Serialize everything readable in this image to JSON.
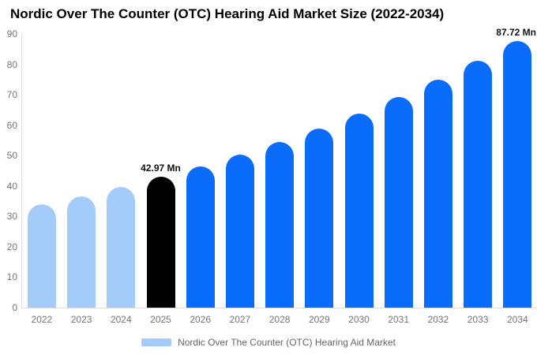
{
  "chart_data": {
    "type": "bar",
    "title": "Nordic Over The Counter (OTC) Hearing Aid Market Size (2022-2034)",
    "categories": [
      "2022",
      "2023",
      "2024",
      "2025",
      "2026",
      "2027",
      "2028",
      "2029",
      "2030",
      "2031",
      "2032",
      "2033",
      "2034"
    ],
    "values": [
      33.9,
      36.7,
      39.7,
      42.97,
      46.5,
      50.4,
      54.5,
      59.0,
      63.9,
      69.2,
      74.9,
      81.1,
      87.72
    ],
    "unit": "Mn",
    "xlabel": "",
    "ylabel": "",
    "ylim": [
      0,
      90
    ],
    "yticks": [
      0,
      10,
      20,
      30,
      40,
      50,
      60,
      70,
      80,
      90
    ],
    "grid": false,
    "bar_color_keys": [
      "historical",
      "historical",
      "historical",
      "base_year",
      "forecast",
      "forecast",
      "forecast",
      "forecast",
      "forecast",
      "forecast",
      "forecast",
      "forecast",
      "forecast"
    ],
    "colors": {
      "historical": "#A4CCFB",
      "base_year": "#000000",
      "forecast": "#0A6CFA"
    },
    "data_labels": [
      {
        "category": "2025",
        "text": "42.97 Mn",
        "align": "center"
      },
      {
        "category": "2034",
        "text": "87.72 Mn",
        "align": "right"
      }
    ],
    "legend": {
      "label": "Nordic Over The Counter (OTC) Hearing Aid Market",
      "position": "bottom",
      "swatch_color": "#A4CCFB"
    },
    "axis_color": "#dedede",
    "tick_label_color": "#757575"
  }
}
